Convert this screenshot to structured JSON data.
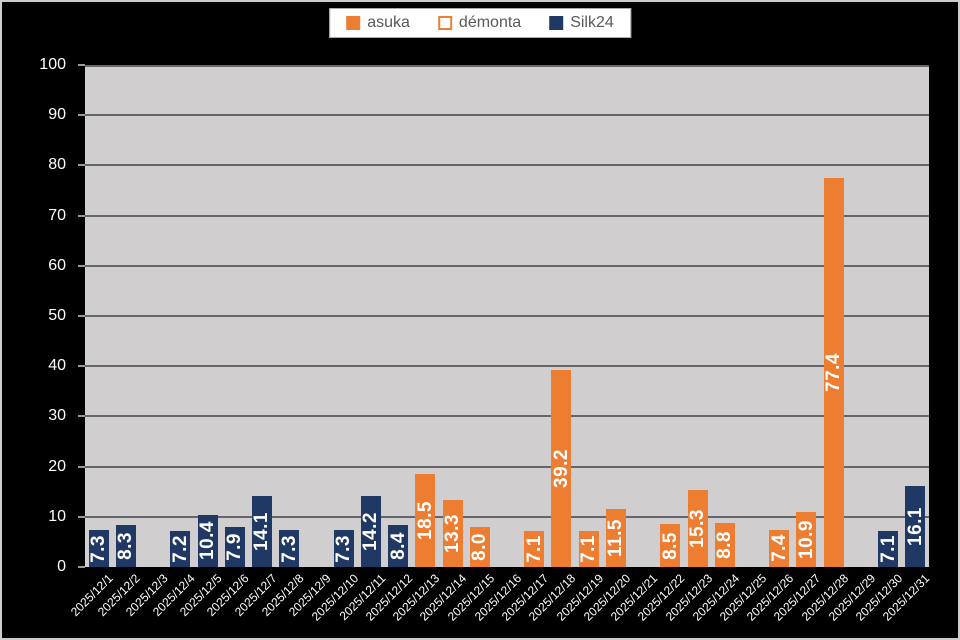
{
  "chart_data": {
    "type": "bar",
    "title": "",
    "xlabel": "",
    "ylabel": "",
    "ylim": [
      0,
      100
    ],
    "ytick_step": 10,
    "grid": true,
    "legend_position": "top",
    "value_labels": "inside-center-rotated-90",
    "categories": [
      "2025/12/1",
      "2025/12/2",
      "2025/12/3",
      "2025/12/4",
      "2025/12/5",
      "2025/12/6",
      "2025/12/7",
      "2025/12/8",
      "2025/12/9",
      "2025/12/10",
      "2025/12/11",
      "2025/12/12",
      "2025/12/13",
      "2025/12/14",
      "2025/12/15",
      "2025/12/16",
      "2025/12/17",
      "2025/12/18",
      "2025/12/19",
      "2025/12/20",
      "2025/12/21",
      "2025/12/22",
      "2025/12/23",
      "2025/12/24",
      "2025/12/25",
      "2025/12/26",
      "2025/12/27",
      "2025/12/28",
      "2025/12/29",
      "2025/12/30",
      "2025/12/31"
    ],
    "series": [
      {
        "name": "asuka",
        "color": "#ED7D31",
        "style": "solid",
        "values": [
          null,
          null,
          null,
          null,
          null,
          null,
          null,
          null,
          null,
          null,
          null,
          null,
          18.5,
          13.3,
          8.0,
          null,
          7.1,
          39.2,
          7.1,
          11.5,
          null,
          8.5,
          15.3,
          8.8,
          null,
          7.4,
          10.9,
          77.4,
          null,
          null,
          null
        ]
      },
      {
        "name": "démonta",
        "color": "#ED7D31",
        "style": "outline",
        "values": [
          null,
          null,
          null,
          null,
          null,
          null,
          null,
          null,
          null,
          null,
          null,
          null,
          null,
          null,
          null,
          null,
          null,
          null,
          null,
          null,
          null,
          null,
          null,
          null,
          null,
          null,
          null,
          null,
          null,
          null,
          null
        ]
      },
      {
        "name": "Silk24",
        "color": "#1F3864",
        "style": "solid",
        "values": [
          7.3,
          8.3,
          null,
          7.2,
          10.4,
          7.9,
          14.1,
          7.3,
          null,
          7.3,
          14.2,
          8.4,
          null,
          null,
          null,
          null,
          null,
          null,
          null,
          null,
          null,
          null,
          null,
          null,
          null,
          null,
          null,
          null,
          null,
          7.1,
          16.1
        ]
      }
    ],
    "colors": {
      "background": "#000000",
      "plot_background": "#D0CECE",
      "gridline": "#65656B",
      "axis_text": "#FFFFFF",
      "bar_value_text": "#FFFFFF",
      "legend_text": "#595959",
      "legend_background": "#FFFFFF",
      "legend_border": "#A9A9B0"
    }
  }
}
